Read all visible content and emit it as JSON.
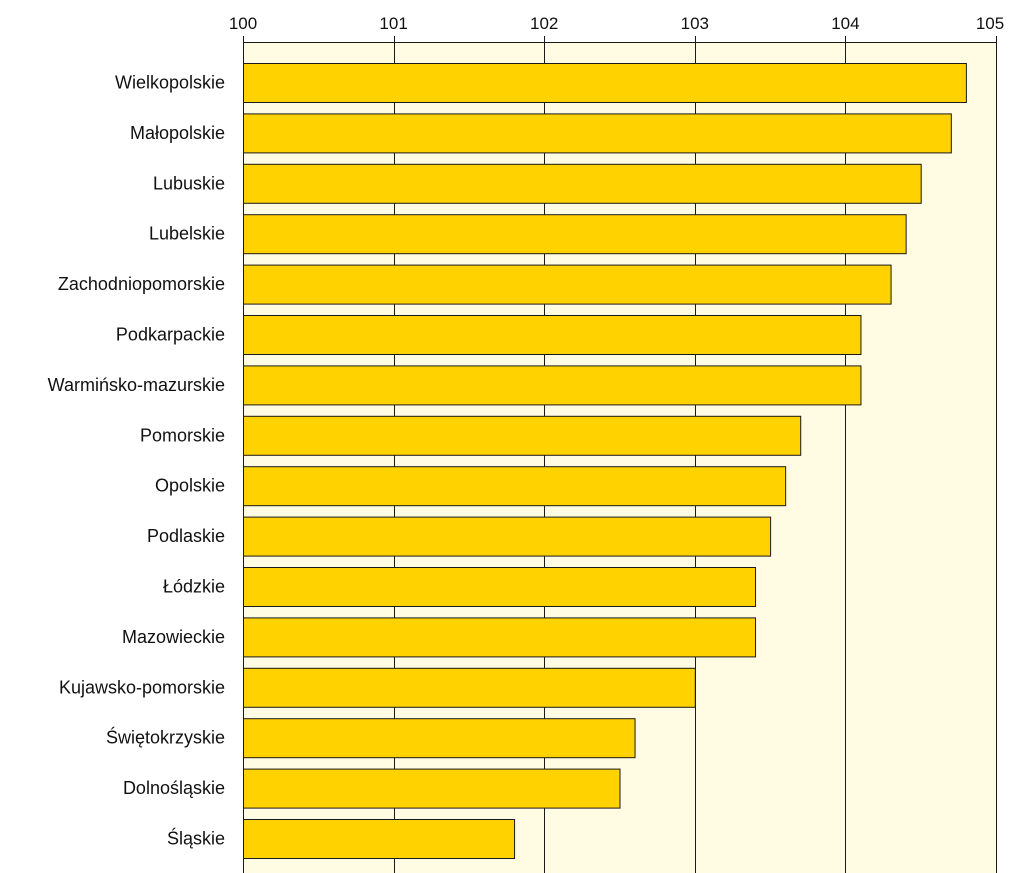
{
  "colors": {
    "bar_fill": "#FFD200",
    "bar_stroke": "#1a1a1a",
    "plot_background": "#FFFCE3",
    "grid": "#1a1a1a"
  },
  "chart_data": {
    "type": "bar",
    "orientation": "horizontal",
    "title": "",
    "xlabel": "",
    "ylabel": "",
    "xlim": [
      100,
      105
    ],
    "xticks": [
      100,
      101,
      102,
      103,
      104,
      105
    ],
    "tick_labels": [
      "100",
      "101",
      "102",
      "103",
      "104",
      "105"
    ],
    "axis_position": "top",
    "grid": true,
    "legend": "none",
    "categories": [
      "Wielkopolskie",
      "Małopolskie",
      "Lubuskie",
      "Lubelskie",
      "Zachodniopomorskie",
      "Podkarpackie",
      "Warmińsko-mazurskie",
      "Pomorskie",
      "Opolskie",
      "Podlaskie",
      "Łódzkie",
      "Mazowieckie",
      "Kujawsko-pomorskie",
      "Świętokrzyskie",
      "Dolnośląskie",
      "Śląskie"
    ],
    "values": [
      104.8,
      104.7,
      104.5,
      104.4,
      104.3,
      104.1,
      104.1,
      103.7,
      103.6,
      103.5,
      103.4,
      103.4,
      103.0,
      102.6,
      102.5,
      101.8
    ]
  }
}
